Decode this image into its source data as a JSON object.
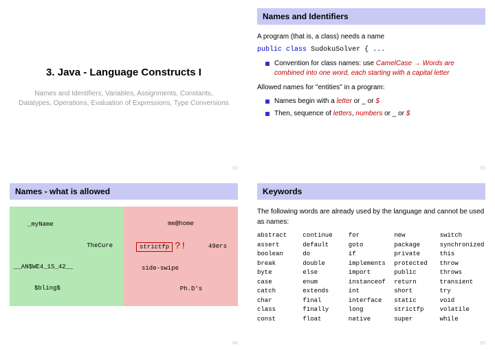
{
  "title_slide": {
    "title": "3. Java - Language Constructs I",
    "subtitle1": "Names and Identifiers, Variables, Assignments, Constants,",
    "subtitle2": "Datatypes, Operations, Evaluation of Expressions, Type Conversions",
    "page": "82"
  },
  "slide2": {
    "header": "Names and Identifiers",
    "intro": "A program (that is, a class) needs a name",
    "code_kw1": "public",
    "code_kw2": "class",
    "code_rest": " SudokuSolver { ...",
    "bullet1_a": "Convention for class names: use ",
    "bullet1_b": "CamelCase",
    "bullet1_arrow": " → ",
    "bullet1_c": "Words are combined into one word, each starting with a capital letter",
    "allowed": "Allowed names for \"entities\" in a program:",
    "bullet2_a": "Names begin with a ",
    "bullet2_b": "letter",
    "bullet2_c": " or _ or ",
    "bullet2_d": "$",
    "bullet3_a": "Then, sequence of ",
    "bullet3_b": "letters",
    "bullet3_c": ", ",
    "bullet3_d": "numbers",
    "bullet3_e": " or _ or ",
    "bullet3_f": "$",
    "page": "83"
  },
  "slide3": {
    "header": "Names - what is allowed",
    "green": {
      "r1": "_myName",
      "r2": "TheCure",
      "r3": "__AN$WE4_1S_42__",
      "r4": "$bling$"
    },
    "pink": {
      "r1": "me@home",
      "r2a": "strictfp",
      "r2b": "?!",
      "r2c": "49ers",
      "r3": "side-swipe",
      "r4": "Ph.D's"
    },
    "page": "84"
  },
  "slide4": {
    "header": "Keywords",
    "intro": "The following words are already used by the language and cannot be used as names:",
    "kw": [
      "abstract",
      "continue",
      "for",
      "new",
      "switch",
      "assert",
      "default",
      "goto",
      "package",
      "synchronized",
      "boolean",
      "do",
      "if",
      "private",
      "this",
      "break",
      "double",
      "implements",
      "protected",
      "throw",
      "byte",
      "else",
      "import",
      "public",
      "throws",
      "case",
      "enum",
      "instanceof",
      "return",
      "transient",
      "catch",
      "extends",
      "int",
      "short",
      "try",
      "char",
      "final",
      "interface",
      "static",
      "void",
      "class",
      "finally",
      "long",
      "strictfp",
      "volatile",
      "const",
      "float",
      "native",
      "super",
      "while"
    ],
    "page": "85"
  },
  "colors": {
    "header_bg": "#c8caf5",
    "green_bg": "#b5e7b5",
    "pink_bg": "#f4bcbc",
    "red_text": "#c00000",
    "blue_kw": "#0000cc",
    "bullet": "#3232cc"
  }
}
